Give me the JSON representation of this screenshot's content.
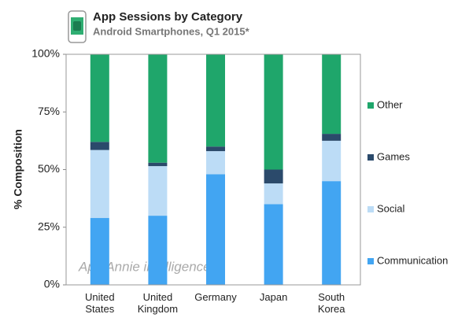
{
  "chart_data": {
    "type": "stacked_bar",
    "title": "App Sessions by Category",
    "subtitle": "Android Smartphones, Q1 2015*",
    "y_label": "% Composition",
    "annotation": "App Annie intelligence",
    "categories": [
      "United States",
      "United Kingdom",
      "Germany",
      "Japan",
      "South Korea"
    ],
    "series": [
      {
        "name": "Communication",
        "color": "#42a5f2",
        "values": [
          29,
          30,
          48,
          35,
          45
        ]
      },
      {
        "name": "Social",
        "color": "#bcdcf6",
        "values": [
          29.5,
          21.5,
          10,
          9,
          17.5
        ]
      },
      {
        "name": "Games",
        "color": "#2b4a6b",
        "values": [
          3.5,
          1.5,
          2,
          6,
          3
        ]
      },
      {
        "name": "Other",
        "color": "#1fa66b",
        "values": [
          38,
          47,
          40,
          50,
          34.5
        ]
      }
    ],
    "ylim": [
      0,
      100
    ],
    "yticks": [
      {
        "value": 0,
        "label": "0%"
      },
      {
        "value": 25,
        "label": "25%"
      },
      {
        "value": 50,
        "label": "50%"
      },
      {
        "value": 75,
        "label": "75%"
      },
      {
        "value": 100,
        "label": "100%"
      }
    ],
    "legend": "right"
  }
}
